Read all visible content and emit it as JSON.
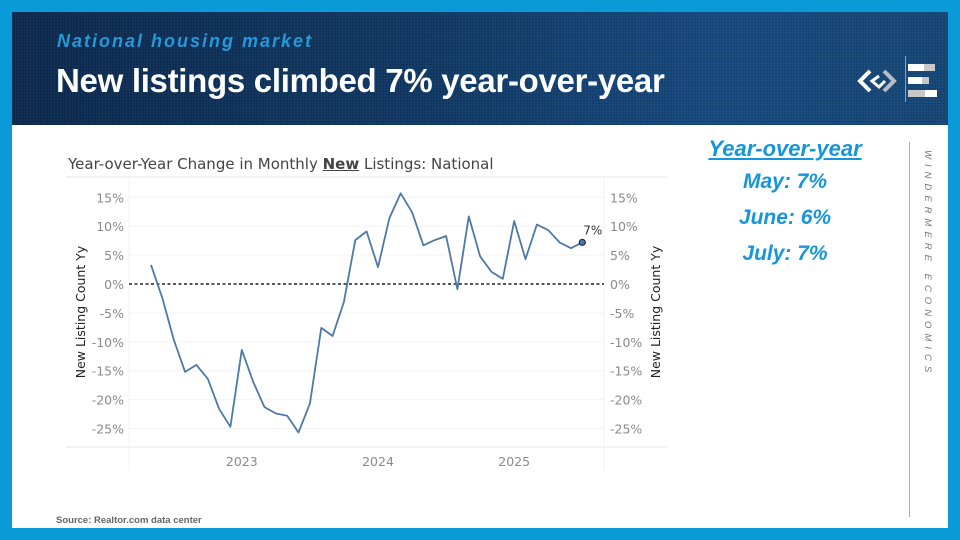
{
  "header": {
    "kicker": "National housing market",
    "title": "New listings climbed 7% year-over-year",
    "logo_icon": "windermere-logo-icon",
    "bars_icon": "economics-bars-icon"
  },
  "sidebar": {
    "heading": "Year-over-year",
    "rows": [
      "May: 7%",
      "June: 6%",
      "July: 7%"
    ],
    "brand": "WINDERMERE ECONOMICS"
  },
  "source": "Source: Realtor.com data center",
  "colors": {
    "accent": "#0a9ad8",
    "line": "#4e79a7",
    "header_bg": "#113a66",
    "sidebar_text": "#1596dc"
  },
  "chart_data": {
    "type": "line",
    "title_prefix": "Year-over-Year Change in Monthly ",
    "title_emph": "New",
    "title_suffix": " Listings: National",
    "ylabel_left": "New Listing Count Yy",
    "ylabel_right": "New Listing Count Yy",
    "ylim": [
      -28,
      17
    ],
    "yticks": [
      15,
      10,
      5,
      0,
      -5,
      -10,
      -15,
      -20,
      -25
    ],
    "ytick_labels": [
      "15%",
      "10%",
      "5%",
      "0%",
      "-5%",
      "-10%",
      "-15%",
      "-20%",
      "-25%"
    ],
    "xtick_labels": [
      "2023",
      "2024",
      "2025"
    ],
    "xtick_month_index": [
      8,
      20,
      32
    ],
    "x_start": "May 2022",
    "x_end": "Jul 2025",
    "reference_line": 0,
    "grid": true,
    "end_label": "7%",
    "series": [
      {
        "name": "New Listing Count Yy",
        "values": [
          3.3,
          -2.4,
          -9.6,
          -15.2,
          -14.0,
          -16.4,
          -21.6,
          -24.7,
          -11.4,
          -16.9,
          -21.3,
          -22.4,
          -22.8,
          -25.7,
          -20.7,
          -7.6,
          -9.0,
          -3.1,
          7.6,
          9.1,
          2.9,
          11.4,
          15.7,
          12.4,
          6.7,
          7.6,
          8.3,
          -0.9,
          11.7,
          4.8,
          2.1,
          0.9,
          10.9,
          4.3,
          10.3,
          9.3,
          7.2,
          6.2,
          7.2
        ]
      }
    ]
  }
}
